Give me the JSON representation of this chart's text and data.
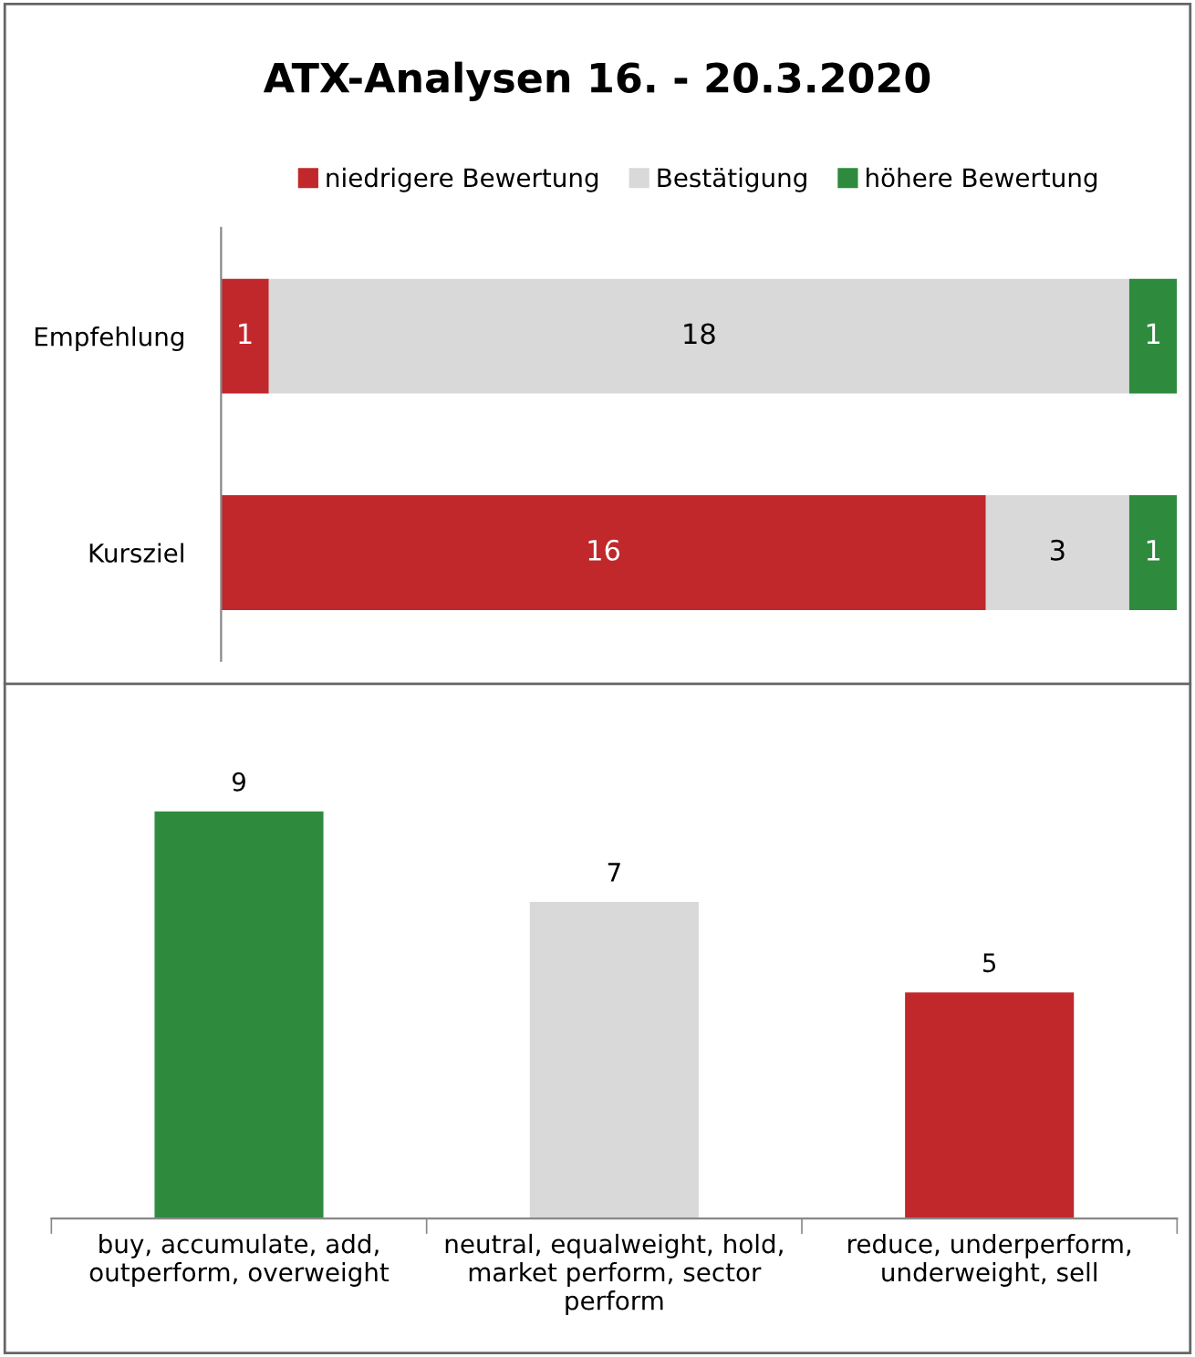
{
  "chart_data": [
    {
      "type": "bar",
      "title": "ATX-Analysen 16. - 20.3.2020",
      "orientation": "horizontal",
      "stacked": true,
      "categories": [
        "Empfehlung",
        "Kursziel"
      ],
      "series": [
        {
          "name": "niedrigere Bewertung",
          "color": "#c0282b",
          "values": [
            1,
            16
          ]
        },
        {
          "name": "Bestätigung",
          "color": "#d9d9d9",
          "values": [
            18,
            3
          ]
        },
        {
          "name": "höhere Bewertung",
          "color": "#2e8b3e",
          "values": [
            1,
            1
          ]
        }
      ],
      "data_labels": true,
      "legend": "top",
      "grid": false
    },
    {
      "type": "bar",
      "categories": [
        "buy, accumulate, add,\noutperform, overweight",
        "neutral, equalweight, hold,\nmarket perform, sector\nperform",
        "reduce, underperform,\nunderweight, sell"
      ],
      "values": [
        9,
        7,
        5
      ],
      "colors": [
        "#2e8b3e",
        "#d9d9d9",
        "#c0282b"
      ],
      "data_labels": true,
      "grid": false
    }
  ]
}
